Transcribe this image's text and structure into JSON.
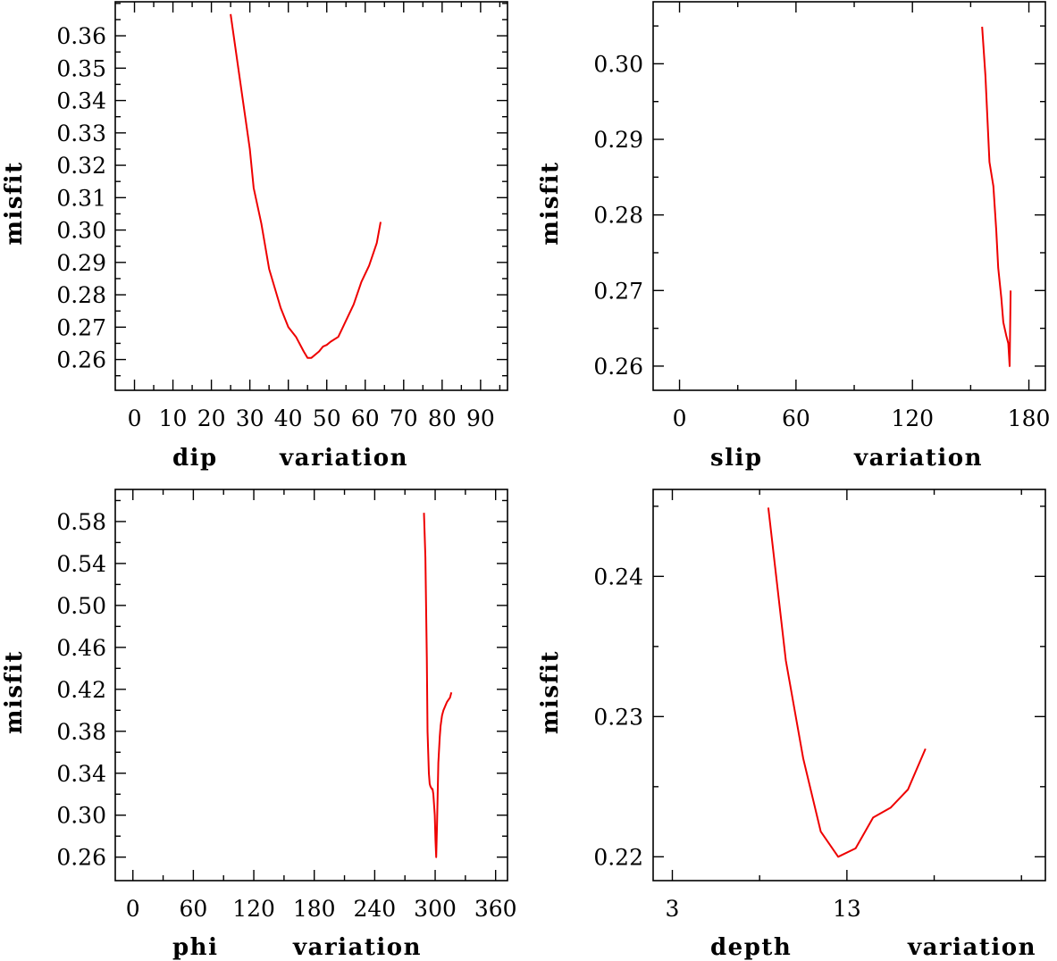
{
  "chart_data": [
    {
      "type": "line",
      "panel": "top-left",
      "xlabel": "dip",
      "xlabel_suffix": "variation",
      "ylabel": "misfit",
      "xlim": [
        -5,
        97
      ],
      "ylim": [
        0.2505,
        0.3705
      ],
      "xticks": [
        0,
        10,
        20,
        30,
        40,
        50,
        60,
        70,
        80,
        90
      ],
      "xticks_minor": [
        0,
        5,
        10,
        15,
        20,
        25,
        30,
        35,
        40,
        45,
        50,
        55,
        60,
        65,
        70,
        75,
        80,
        85,
        90,
        95
      ],
      "xtick_labels": [
        "0",
        "10",
        "20",
        "30",
        "40",
        "50",
        "60",
        "70",
        "80",
        "90"
      ],
      "yticks": [
        0.26,
        0.27,
        0.28,
        0.29,
        0.3,
        0.31,
        0.32,
        0.33,
        0.34,
        0.35,
        0.36
      ],
      "yticks_minor": [
        0.255,
        0.26,
        0.265,
        0.27,
        0.275,
        0.28,
        0.285,
        0.29,
        0.295,
        0.3,
        0.305,
        0.31,
        0.315,
        0.32,
        0.325,
        0.33,
        0.335,
        0.34,
        0.345,
        0.35,
        0.355,
        0.36,
        0.365,
        0.37
      ],
      "ytick_labels": [
        "0.26",
        "0.27",
        "0.28",
        "0.29",
        "0.30",
        "0.31",
        "0.32",
        "0.33",
        "0.34",
        "0.35",
        "0.36"
      ],
      "series": [
        {
          "name": "dip",
          "color": "#ee0000",
          "x": [
            25,
            27,
            30,
            31,
            33,
            35,
            38,
            40,
            42,
            44,
            45,
            46,
            48,
            49,
            50,
            51,
            53,
            55,
            57,
            59,
            61,
            63,
            64
          ],
          "y": [
            0.3667,
            0.35,
            0.325,
            0.313,
            0.302,
            0.288,
            0.276,
            0.27,
            0.267,
            0.2625,
            0.2605,
            0.2605,
            0.2625,
            0.264,
            0.2645,
            0.2655,
            0.267,
            0.272,
            0.277,
            0.284,
            0.289,
            0.296,
            0.3025
          ]
        }
      ]
    },
    {
      "type": "line",
      "panel": "top-right",
      "xlabel": "slip",
      "xlabel_suffix": "variation",
      "ylabel": "misfit",
      "xlim": [
        -13.6,
        188.5
      ],
      "ylim": [
        0.2568,
        0.3082
      ],
      "xticks": [
        0,
        60,
        120,
        180
      ],
      "xticks_minor": [
        0,
        30,
        60,
        90,
        120,
        150,
        180
      ],
      "xtick_labels": [
        "0",
        "60",
        "120",
        "180"
      ],
      "yticks": [
        0.26,
        0.27,
        0.28,
        0.29,
        0.3
      ],
      "yticks_minor": [
        0.26,
        0.265,
        0.27,
        0.275,
        0.28,
        0.285,
        0.29,
        0.295,
        0.3,
        0.305
      ],
      "ytick_labels": [
        "0.26",
        "0.27",
        "0.28",
        "0.29",
        "0.30"
      ],
      "series": [
        {
          "name": "slip",
          "color": "#ee0000",
          "x": [
            155.9,
            157.6,
            159.7,
            161.7,
            163.2,
            164.2,
            165.8,
            166.8,
            168.4,
            169.4,
            170.1,
            170.6
          ],
          "y": [
            0.3049,
            0.2984,
            0.287,
            0.2838,
            0.278,
            0.273,
            0.269,
            0.2658,
            0.264,
            0.263,
            0.26,
            0.27
          ]
        }
      ]
    },
    {
      "type": "line",
      "panel": "bottom-left",
      "xlabel": "phi",
      "xlabel_suffix": "variation",
      "ylabel": "misfit",
      "xlim": [
        -17.5,
        371.8
      ],
      "ylim": [
        0.2376,
        0.6106
      ],
      "xticks": [
        0,
        60,
        120,
        180,
        240,
        300,
        360
      ],
      "xticks_minor": [
        0,
        30,
        60,
        90,
        120,
        150,
        180,
        210,
        240,
        270,
        300,
        330,
        360
      ],
      "xtick_labels": [
        "0",
        "60",
        "120",
        "180",
        "240",
        "300",
        "360"
      ],
      "yticks": [
        0.26,
        0.3,
        0.34,
        0.38,
        0.42,
        0.46,
        0.5,
        0.54,
        0.58
      ],
      "yticks_minor": [
        0.26,
        0.28,
        0.3,
        0.32,
        0.34,
        0.36,
        0.38,
        0.4,
        0.42,
        0.44,
        0.46,
        0.48,
        0.5,
        0.52,
        0.54,
        0.56,
        0.58,
        0.6
      ],
      "ytick_labels": [
        "0.26",
        "0.30",
        "0.34",
        "0.38",
        "0.42",
        "0.46",
        "0.50",
        "0.54",
        "0.58"
      ],
      "series": [
        {
          "name": "phi",
          "color": "#ee0000",
          "x": [
            288.9,
            290.3,
            291.7,
            292.4,
            293.8,
            294.6,
            295.3,
            296.7,
            297.4,
            298.2,
            299.6,
            300.3,
            301.0,
            301.8,
            303.2,
            304.6,
            305.4,
            306.8,
            308.2,
            310.4,
            311.8,
            313.2,
            314.7,
            316.1
          ],
          "y": [
            0.5883,
            0.546,
            0.45,
            0.38,
            0.34,
            0.33,
            0.3275,
            0.325,
            0.325,
            0.32,
            0.3,
            0.276,
            0.26,
            0.29,
            0.35,
            0.375,
            0.385,
            0.395,
            0.4,
            0.405,
            0.408,
            0.41,
            0.412,
            0.417
          ]
        }
      ]
    },
    {
      "type": "line",
      "panel": "bottom-right",
      "xlabel": "depth",
      "xlabel_suffix": "variation",
      "ylabel": "misfit",
      "xlim": [
        1.9,
        24.37
      ],
      "ylim": [
        0.2183,
        0.2462
      ],
      "xticks": [
        3,
        13
      ],
      "xticks_minor": [
        3,
        8,
        13,
        18,
        23
      ],
      "xtick_labels": [
        "3",
        "13"
      ],
      "yticks": [
        0.22,
        0.23,
        0.24
      ],
      "yticks_minor": [
        0.22,
        0.225,
        0.23,
        0.235,
        0.24,
        0.245
      ],
      "ytick_labels": [
        "0.22",
        "0.23",
        "0.24"
      ],
      "series": [
        {
          "name": "depth",
          "color": "#ee0000",
          "x": [
            8.5,
            9.5,
            10.5,
            11.5,
            12.5,
            13.5,
            14.5,
            15.5,
            16.5,
            17.5
          ],
          "y": [
            0.2449,
            0.234,
            0.227,
            0.2218,
            0.22,
            0.2206,
            0.2228,
            0.2235,
            0.2248,
            0.2277
          ]
        }
      ]
    }
  ]
}
